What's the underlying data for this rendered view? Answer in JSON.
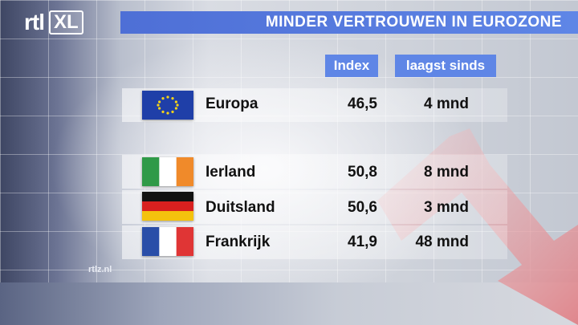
{
  "logo": {
    "rtl": "rtl",
    "xl": "XL"
  },
  "title": "MINDER VERTROUWEN IN EUROZONE",
  "columns": {
    "index": "Index",
    "since": "laagst sinds"
  },
  "rows": [
    {
      "flag": "eu-flag-icon",
      "country": "Europa",
      "index": "46,5",
      "since": "4 mnd"
    },
    {
      "flag": "ireland-flag-icon",
      "country": "Ierland",
      "index": "50,8",
      "since": "8 mnd"
    },
    {
      "flag": "germany-flag-icon",
      "country": "Duitsland",
      "index": "50,6",
      "since": "3 mnd"
    },
    {
      "flag": "france-flag-icon",
      "country": "Frankrijk",
      "index": "41,9",
      "since": "48 mnd"
    }
  ],
  "footer": "rtlz.nl",
  "colors": {
    "accent": "#5f86e6",
    "arrow": "#e07d83"
  }
}
